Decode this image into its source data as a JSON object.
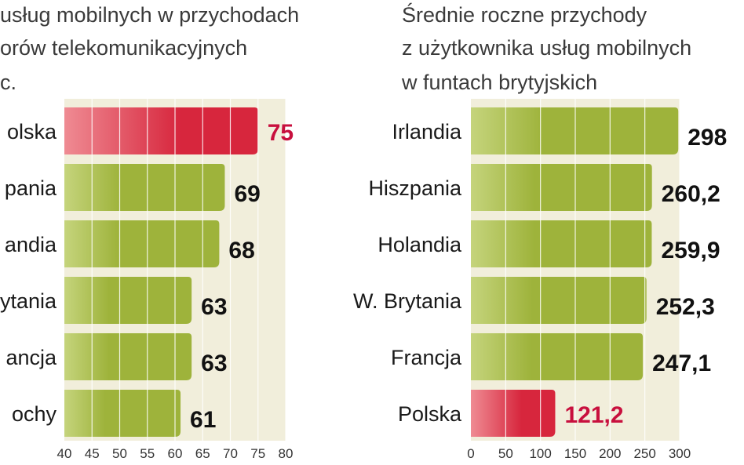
{
  "colors": {
    "bar": "#9eb33b",
    "bar_light": "#c5d47c",
    "highlight": "#d7263d",
    "highlight_light": "#ef8b93",
    "panel_bg": "#f1eedb",
    "highlight_text": "#c8103e"
  },
  "chart_data": [
    {
      "type": "bar",
      "orientation": "horizontal",
      "title_lines": [
        "usług mobilnych w przychodach",
        "orów telekomunikacyjnych",
        "c."
      ],
      "categories": [
        "olska",
        "pania",
        "andia",
        "ytania",
        "ancja",
        "ochy"
      ],
      "values": [
        75,
        69,
        68,
        63,
        63,
        61
      ],
      "value_labels": [
        "75",
        "69",
        "68",
        "63",
        "63",
        "61"
      ],
      "highlight_index": 0,
      "xlim": [
        40,
        80
      ],
      "ticks": [
        "40",
        "45",
        "50",
        "55",
        "60",
        "65",
        "70",
        "75",
        "80"
      ],
      "grid": true
    },
    {
      "type": "bar",
      "orientation": "horizontal",
      "title_lines": [
        "Średnie roczne przychody",
        "z użytkownika usług mobilnych",
        "w funtach brytyjskich"
      ],
      "categories": [
        "Irlandia",
        "Hiszpania",
        "Holandia",
        "W. Brytania",
        "Francja",
        "Polska"
      ],
      "values": [
        298,
        260.2,
        259.9,
        252.3,
        247.1,
        121.2
      ],
      "value_labels": [
        "298",
        "260,2",
        "259,9",
        "252,3",
        "247,1",
        "121,2"
      ],
      "highlight_index": 5,
      "xlim": [
        0,
        300
      ],
      "ticks": [
        "0",
        "50",
        "100",
        "150",
        "200",
        "250",
        "300"
      ],
      "grid": true
    }
  ]
}
